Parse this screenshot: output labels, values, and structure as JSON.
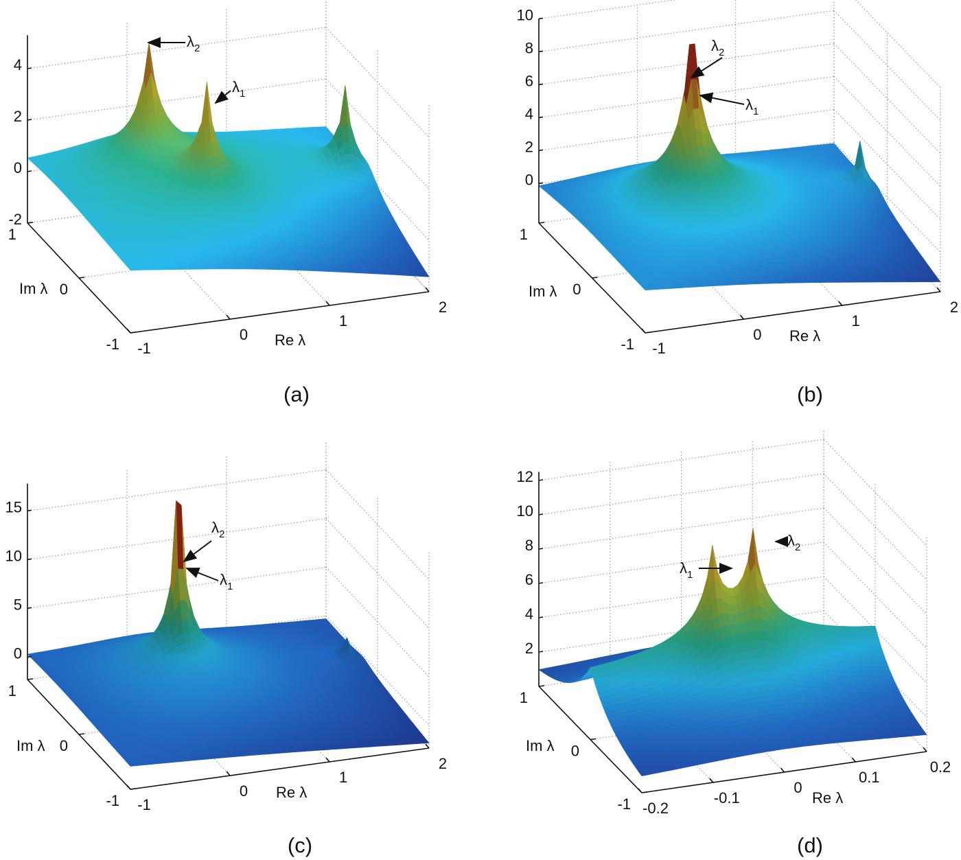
{
  "colors": {
    "colormap": [
      "#1b2a78",
      "#1f5fb2",
      "#25a9d8",
      "#2aa886",
      "#8cb23e",
      "#cdb832",
      "#a3261a"
    ],
    "grid": "#9a9a9a",
    "axis": "#111111"
  },
  "chart_data": [
    {
      "type": "surface",
      "panel_label": "(a)",
      "xlabel": "Re λ",
      "ylabel": "Im λ",
      "xlim": [
        -1,
        2
      ],
      "ylim": [
        -1,
        1
      ],
      "zlim": [
        -2,
        5.3
      ],
      "x_ticks": [
        "-1",
        "0",
        "1",
        "2"
      ],
      "x_tick_values": [
        -1,
        0,
        1,
        2
      ],
      "y_ticks": [
        "-1",
        "0",
        "1"
      ],
      "y_tick_values": [
        -1,
        0,
        1
      ],
      "z_ticks": [
        "-2",
        "0",
        "2",
        "4"
      ],
      "z_tick_values": [
        -2,
        0,
        2,
        4
      ],
      "grid": true,
      "color_range": [
        -2,
        5
      ],
      "surface": {
        "corner_z": {
          "re_min_im_min": -0.1,
          "re_max_im_min": -2.0,
          "re_min_im_max": -0.2,
          "re_max_im_max": -0.6
        },
        "dome": 0.5,
        "ridge": 0,
        "peaks": [
          {
            "name": "λ2",
            "re": 0.0,
            "im": 0.6,
            "height": 5.4,
            "width": 0.03
          },
          {
            "name": "λ1",
            "re": 0.3,
            "im": 0.0,
            "height": 4.3,
            "width": 0.03
          },
          {
            "re": 1.8,
            "im": 0.2,
            "height": 4.0,
            "width": 0.03
          }
        ]
      },
      "annotations": [
        {
          "symbol": "λ",
          "sub": "2"
        },
        {
          "symbol": "λ",
          "sub": "1"
        }
      ]
    },
    {
      "type": "surface",
      "panel_label": "(b)",
      "xlabel": "Re λ",
      "ylabel": "Im λ",
      "xlim": [
        -1,
        2
      ],
      "ylim": [
        -1,
        1
      ],
      "zlim": [
        -2.4,
        10
      ],
      "x_ticks": [
        "-1",
        "0",
        "1",
        "2"
      ],
      "x_tick_values": [
        -1,
        0,
        1,
        2
      ],
      "y_ticks": [
        "-1",
        "0",
        "1"
      ],
      "y_tick_values": [
        -1,
        0,
        1
      ],
      "z_ticks": [
        "0",
        "2",
        "4",
        "6",
        "8",
        "10"
      ],
      "z_tick_values": [
        0,
        2,
        4,
        6,
        8,
        10
      ],
      "grid": true,
      "color_range": [
        -2.4,
        8
      ],
      "surface": {
        "corner_z": {
          "re_min_im_min": -0.45,
          "re_max_im_min": -2.4,
          "re_min_im_max": -0.95,
          "re_max_im_max": -0.8
        },
        "dome": 1.0,
        "ridge": 0,
        "peaks": [
          {
            "name": "λ2",
            "re": 0.12,
            "im": 0.25,
            "height": 6.6,
            "width": 0.03
          },
          {
            "name": "λ1",
            "re": 0.19,
            "im": 0.25,
            "height": 6.2,
            "width": 0.03
          },
          {
            "re": 1.85,
            "im": 0.2,
            "height": 3.4,
            "width": 0.02
          }
        ]
      },
      "annotations": [
        {
          "symbol": "λ",
          "sub": "2"
        },
        {
          "symbol": "λ",
          "sub": "1"
        }
      ]
    },
    {
      "type": "surface",
      "panel_label": "(c)",
      "xlabel": "Re λ",
      "ylabel": "Im λ",
      "xlim": [
        -1,
        2
      ],
      "ylim": [
        -1,
        1
      ],
      "zlim": [
        -2.3,
        17.8
      ],
      "x_ticks": [
        "-1",
        "0",
        "1",
        "2"
      ],
      "x_tick_values": [
        -1,
        0,
        1,
        2
      ],
      "y_ticks": [
        "-1",
        "0",
        "1"
      ],
      "y_tick_values": [
        -1,
        0,
        1
      ],
      "z_ticks": [
        "0",
        "5",
        "10",
        "15"
      ],
      "z_tick_values": [
        0,
        5,
        10,
        15
      ],
      "grid": true,
      "color_range": [
        -2.3,
        14
      ],
      "surface": {
        "corner_z": {
          "re_min_im_min": -0.5,
          "re_max_im_min": -2.3,
          "re_min_im_max": -0.5,
          "re_max_im_max": -1.0
        },
        "dome": 1.0,
        "ridge": 0,
        "peaks": [
          {
            "name": "λ2",
            "re": 0.19,
            "im": 0.4,
            "height": 12.5,
            "width": 0.015
          },
          {
            "name": "λ1",
            "re": 0.25,
            "im": 0.4,
            "height": 11.5,
            "width": 0.015
          },
          {
            "re": 1.85,
            "im": 0.3,
            "height": 2.6,
            "width": 0.02
          }
        ]
      },
      "annotations": [
        {
          "symbol": "λ",
          "sub": "2"
        },
        {
          "symbol": "λ",
          "sub": "1"
        }
      ]
    },
    {
      "type": "surface",
      "panel_label": "(d)",
      "xlabel": "Re λ",
      "ylabel": "Im λ",
      "xlim": [
        -0.2,
        0.2
      ],
      "ylim": [
        -1,
        1
      ],
      "zlim": [
        0,
        12.5
      ],
      "x_ticks": [
        "-0.2",
        "-0.1",
        "0",
        "0.1",
        "0.2"
      ],
      "x_tick_values": [
        -0.2,
        -0.1,
        0,
        0.1,
        0.2
      ],
      "y_ticks": [
        "-1",
        "0",
        "1"
      ],
      "y_tick_values": [
        -1,
        0,
        1
      ],
      "z_ticks": [
        "2",
        "4",
        "6",
        "8",
        "10",
        "12"
      ],
      "z_tick_values": [
        2,
        4,
        6,
        8,
        10,
        12
      ],
      "grid": true,
      "color_range": [
        0,
        10.5
      ],
      "surface": {
        "corner_z": {
          "re_min_im_min": 0,
          "re_max_im_min": 0,
          "re_min_im_max": 0,
          "re_max_im_max": 0
        },
        "dome": 0,
        "ridge": 3.3,
        "peaks": [
          {
            "name": "λ1",
            "re": -0.03,
            "im": 0.0,
            "height": 5.6,
            "width": 0.04
          },
          {
            "name": "λ2",
            "re": 0.03,
            "im": 0.0,
            "height": 6.4,
            "width": 0.04
          }
        ]
      },
      "annotations": [
        {
          "symbol": "λ",
          "sub": "1"
        },
        {
          "symbol": "λ",
          "sub": "2"
        }
      ]
    }
  ]
}
